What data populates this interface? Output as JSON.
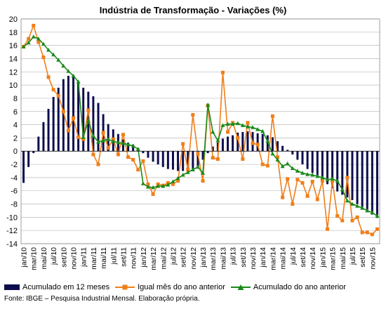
{
  "chart_data": {
    "type": "line",
    "title": "Indústria de Transformação - Variações (%)",
    "source": "Fonte: IBGE – Pesquisa Industrial Mensal. Elaboração própria.",
    "ylim": [
      -14,
      20
    ],
    "yticks": [
      -14,
      -12,
      -10,
      -8,
      -6,
      -4,
      -2,
      0,
      2,
      4,
      6,
      8,
      10,
      12,
      14,
      16,
      18,
      20
    ],
    "grid": true,
    "legend_position": "bottom",
    "xtick_labels": [
      "jan/10",
      "mar/10",
      "mai/10",
      "jul/10",
      "set/10",
      "nov/10",
      "jan/11",
      "mar/11",
      "mai/11",
      "jul/11",
      "set/11",
      "nov/11",
      "jan/12",
      "mar/12",
      "mai/12",
      "jul/12",
      "set/12",
      "nov/12",
      "jan/13",
      "mar/13",
      "mai/13",
      "jul/13",
      "set/13",
      "nov/13",
      "jan/14",
      "mar/14",
      "mai/14",
      "jul/14",
      "set/14",
      "nov/14",
      "jan/15",
      "mar/15",
      "mai/15",
      "jul/15",
      "set/15",
      "nov/15"
    ],
    "colors": {
      "bars": "#0d0d4d",
      "monthly": "#f07f1a",
      "ytd": "#1a8a1a",
      "grid": "#bbbbbb"
    },
    "series": [
      {
        "name": "Acumulado em 12 meses",
        "kind": "bar",
        "values": [
          -4.8,
          -2.4,
          -0.3,
          2.2,
          4.4,
          6.4,
          8.2,
          9.6,
          10.9,
          11.4,
          11.2,
          10.4,
          9.6,
          9.0,
          8.3,
          7.3,
          5.6,
          4.1,
          3.3,
          2.6,
          1.8,
          1.3,
          1.0,
          0.5,
          -0.3,
          -1.0,
          -1.6,
          -2.0,
          -2.4,
          -2.7,
          -2.8,
          -3.0,
          -3.0,
          -3.1,
          -2.9,
          -2.4,
          -1.3,
          -0.3,
          0.7,
          1.3,
          1.9,
          2.2,
          2.4,
          2.8,
          2.9,
          3.0,
          2.9,
          2.7,
          2.6,
          2.4,
          2.1,
          1.5,
          0.8,
          0.2,
          -0.5,
          -1.3,
          -2.0,
          -2.7,
          -3.3,
          -3.8,
          -4.3,
          -5.0,
          -5.6,
          -6.1,
          -6.6,
          -7.0,
          -7.4,
          -8.0,
          -8.5,
          -9.1,
          -9.6,
          -10.1
        ]
      },
      {
        "name": "Igual mês do ano anterior",
        "kind": "line",
        "values": [
          15.8,
          17.0,
          19.0,
          16.5,
          14.2,
          11.2,
          9.3,
          8.4,
          6.0,
          3.1,
          5.0,
          2.1,
          1.8,
          6.2,
          -0.5,
          -2.0,
          2.8,
          0.5,
          1.8,
          -0.5,
          2.5,
          -0.9,
          -1.3,
          -2.8,
          -1.5,
          -5.0,
          -6.5,
          -5.0,
          -5.2,
          -4.8,
          -5.0,
          -4.5,
          1.1,
          -2.8,
          5.5,
          -0.4,
          -4.5,
          6.9,
          -1.0,
          -1.2,
          11.9,
          2.9,
          4.3,
          2.0,
          -1.2,
          4.3,
          1.2,
          1.0,
          -2.0,
          -2.2,
          5.3,
          -0.9,
          -7.0,
          -4.2,
          -8.0,
          -4.3,
          -4.8,
          -6.8,
          -4.6,
          -7.3,
          -4.5,
          -11.8,
          -4.5,
          -9.8,
          -10.5,
          -4.0,
          -10.5,
          -10.0,
          -12.3,
          -12.3,
          -12.6,
          -11.8
        ]
      },
      {
        "name": "Acumulado do ano anterior",
        "kind": "line",
        "values": [
          15.8,
          16.4,
          17.3,
          17.0,
          16.2,
          15.3,
          14.6,
          13.8,
          12.9,
          12.1,
          11.4,
          10.5,
          2.1,
          4.6,
          2.3,
          1.4,
          1.6,
          1.8,
          1.5,
          1.3,
          1.2,
          1.0,
          0.8,
          0.3,
          -4.9,
          -5.4,
          -5.5,
          -5.3,
          -5.3,
          -5.1,
          -4.6,
          -4.1,
          -3.6,
          -3.2,
          -2.8,
          -2.4,
          -3.3,
          7.0,
          2.9,
          1.6,
          3.9,
          4.1,
          4.1,
          4.2,
          3.9,
          3.7,
          3.6,
          3.3,
          3.0,
          1.5,
          -0.4,
          -1.3,
          -2.3,
          -1.9,
          -2.6,
          -3.0,
          -3.3,
          -3.5,
          -3.6,
          -3.8,
          -4.0,
          -4.3,
          -4.2,
          -4.5,
          -5.8,
          -7.5,
          -8.0,
          -8.3,
          -8.6,
          -9.0,
          -9.3,
          -9.8
        ]
      }
    ]
  }
}
